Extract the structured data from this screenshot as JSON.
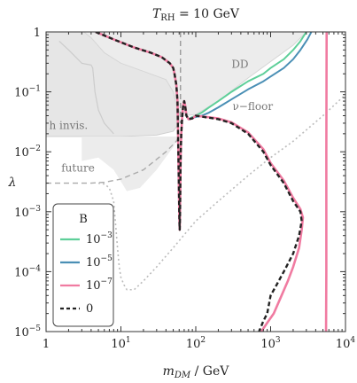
{
  "chart_data": {
    "type": "line",
    "title_main": "T",
    "title_sub": "RH",
    "title_value": " = 10 GeV",
    "xlabel_main": "m",
    "xlabel_sub": "DM",
    "xlabel_unit": " / GeV",
    "ylabel": "λ",
    "x_scale": "log",
    "y_scale": "log",
    "xlim": [
      1,
      10000
    ],
    "ylim": [
      1e-05,
      1
    ],
    "x_ticks": [
      {
        "value": 1,
        "base": "1",
        "exp": ""
      },
      {
        "value": 10,
        "base": "10",
        "exp": "1"
      },
      {
        "value": 100,
        "base": "10",
        "exp": "2"
      },
      {
        "value": 1000,
        "base": "10",
        "exp": "3"
      },
      {
        "value": 10000,
        "base": "10",
        "exp": "4"
      }
    ],
    "y_ticks": [
      {
        "value": 1,
        "base": "1",
        "exp": ""
      },
      {
        "value": 0.1,
        "base": "10",
        "exp": "−1"
      },
      {
        "value": 0.01,
        "base": "10",
        "exp": "−2"
      },
      {
        "value": 0.001,
        "base": "10",
        "exp": "−3"
      },
      {
        "value": 0.0001,
        "base": "10",
        "exp": "−4"
      },
      {
        "value": 1e-05,
        "base": "10",
        "exp": "−5"
      }
    ],
    "legend": {
      "title": "B",
      "placement": "lower-left",
      "entries": [
        {
          "base": "10",
          "exp": "−3",
          "color": "#5ecf99",
          "dashed": false
        },
        {
          "base": "10",
          "exp": "−5",
          "color": "#4a8fb5",
          "dashed": false
        },
        {
          "base": "10",
          "exp": "−7",
          "color": "#f07ba1",
          "dashed": false
        },
        {
          "base": "0",
          "exp": "",
          "color": "#222222",
          "dashed": true
        }
      ]
    },
    "annotations": [
      {
        "text": "DD",
        "x": 300,
        "y": 0.25
      },
      {
        "text": "ν−floor",
        "x": 310,
        "y": 0.05
      },
      {
        "text": "h invis.",
        "x": 1.1,
        "y": 0.024
      },
      {
        "text": "future",
        "x": 1.6,
        "y": 0.0047
      }
    ],
    "regions": {
      "dd_excluded": {
        "color": "#ececec",
        "boundary": [
          [
            3.2,
            1
          ],
          [
            4,
            0.8
          ],
          [
            6,
            0.45
          ],
          [
            10,
            0.3
          ],
          [
            20,
            0.22
          ],
          [
            40,
            0.16
          ],
          [
            50,
            0.1
          ],
          [
            55,
            0.06
          ],
          [
            62,
            0.045
          ],
          [
            70,
            0.04
          ],
          [
            100,
            0.042
          ],
          [
            200,
            0.07
          ],
          [
            500,
            0.17
          ],
          [
            1000,
            0.32
          ],
          [
            2000,
            0.6
          ],
          [
            3000,
            1
          ]
        ]
      },
      "h_invisible": {
        "color": "#e6e6e6",
        "boundary": [
          [
            1,
            0.018
          ],
          [
            10,
            0.018
          ],
          [
            30,
            0.019
          ],
          [
            50,
            0.022
          ],
          [
            60,
            0.03
          ],
          [
            63,
            1
          ]
        ]
      },
      "lower_grey_fill": {
        "color": "#ececec",
        "boundary": [
          [
            3,
            0.007
          ],
          [
            5,
            0.008
          ],
          [
            8,
            0.005
          ],
          [
            12,
            0.0022
          ],
          [
            18,
            0.0025
          ],
          [
            30,
            0.005
          ],
          [
            50,
            0.012
          ],
          [
            62,
            0.02
          ]
        ]
      }
    },
    "series": [
      {
        "key": "zero",
        "color": "#222222",
        "dashed": true,
        "x": [
          4.6,
          8,
          15,
          25,
          35,
          45,
          50,
          52,
          55,
          57,
          58,
          59,
          60,
          60.5,
          61,
          61.5,
          62,
          62.5,
          63,
          64,
          66,
          68,
          70,
          72,
          75,
          80,
          90,
          100,
          200,
          300,
          500,
          800,
          1000,
          1500,
          2000,
          2500,
          2600,
          2400,
          2000,
          1500,
          1200,
          1000,
          900,
          800,
          700
        ],
        "y": [
          1,
          0.75,
          0.55,
          0.45,
          0.38,
          0.3,
          0.25,
          0.2,
          0.13,
          0.07,
          0.02,
          0.005,
          0.0012,
          0.0007,
          0.0005,
          0.0008,
          0.002,
          0.005,
          0.01,
          0.02,
          0.04,
          0.06,
          0.07,
          0.06,
          0.04,
          0.035,
          0.036,
          0.04,
          0.035,
          0.03,
          0.02,
          0.01,
          0.006,
          0.003,
          0.0015,
          0.001,
          0.0007,
          0.0004,
          0.0002,
          0.0001,
          6e-05,
          4e-05,
          2e-05,
          1.5e-05,
          1e-05
        ]
      },
      {
        "key": "b3",
        "color": "#5ecf99",
        "dashed": false,
        "x": [
          75,
          80,
          90,
          100,
          120,
          150,
          200,
          300,
          500,
          800,
          1000,
          1500,
          2000,
          2500,
          3000
        ],
        "y": [
          0.04,
          0.035,
          0.038,
          0.04,
          0.045,
          0.055,
          0.07,
          0.1,
          0.15,
          0.2,
          0.25,
          0.35,
          0.5,
          0.7,
          1
        ]
      },
      {
        "key": "b5",
        "color": "#4a8fb5",
        "dashed": false,
        "x": [
          75,
          80,
          90,
          100,
          120,
          150,
          200,
          300,
          500,
          800,
          1000,
          1500,
          2000,
          2500,
          3100,
          3500
        ],
        "y": [
          0.04,
          0.035,
          0.037,
          0.038,
          0.04,
          0.045,
          0.055,
          0.075,
          0.11,
          0.15,
          0.18,
          0.25,
          0.35,
          0.5,
          0.75,
          1
        ]
      },
      {
        "key": "b7",
        "color": "#f07ba1",
        "dashed": false,
        "x": [
          4.6,
          8,
          15,
          25,
          35,
          45,
          50,
          52,
          55,
          57,
          58,
          59,
          60,
          60.5,
          61,
          61.5,
          62,
          62.5,
          63,
          64,
          66,
          68,
          70,
          72,
          75,
          80,
          90,
          100,
          200,
          300,
          500,
          800,
          1000,
          1500,
          2000,
          2500,
          2700,
          2600,
          2400,
          2000,
          1700,
          1400,
          1100,
          900,
          750
        ],
        "y": [
          1,
          0.75,
          0.55,
          0.45,
          0.38,
          0.3,
          0.25,
          0.2,
          0.13,
          0.07,
          0.02,
          0.005,
          0.0012,
          0.0007,
          0.0005,
          0.0008,
          0.002,
          0.005,
          0.01,
          0.02,
          0.04,
          0.06,
          0.07,
          0.06,
          0.04,
          0.035,
          0.036,
          0.04,
          0.036,
          0.031,
          0.021,
          0.011,
          0.0065,
          0.0033,
          0.0017,
          0.0011,
          0.0008,
          0.0005,
          0.00025,
          0.00012,
          7e-05,
          4e-05,
          2e-05,
          1.4e-05,
          1e-05
        ]
      },
      {
        "key": "b7_right",
        "color": "#f07ba1",
        "dashed": false,
        "x": [
          5600,
          5550,
          5550,
          5500
        ],
        "y": [
          1,
          0.01,
          0.0001,
          1e-05
        ]
      },
      {
        "key": "nu_floor",
        "color": "#bbbbbb",
        "dotted": true,
        "x": [
          5,
          6,
          7,
          8,
          8.5,
          9,
          9.5,
          10,
          11,
          12,
          15,
          20,
          30,
          50,
          100,
          200,
          500,
          1000,
          2000,
          5000,
          10000
        ],
        "y": [
          0.003,
          0.0029,
          0.0025,
          0.0015,
          0.0006,
          0.00025,
          0.00012,
          8e-05,
          6e-05,
          5e-05,
          5e-05,
          7e-05,
          0.00012,
          0.00025,
          0.0007,
          0.0015,
          0.004,
          0.008,
          0.015,
          0.04,
          0.09
        ]
      },
      {
        "key": "future",
        "color": "#aaaaaa",
        "dashed": true,
        "x": [
          1,
          2,
          4,
          6,
          10,
          20,
          40,
          55,
          62
        ],
        "y": [
          0.003,
          0.003,
          0.003,
          0.0031,
          0.0035,
          0.005,
          0.01,
          0.015,
          0.02
        ]
      },
      {
        "key": "h_invis_left",
        "color": "#cccccc",
        "dashed": false,
        "x": [
          1.5,
          2,
          3,
          4,
          4.2,
          4.5,
          5,
          6,
          8
        ],
        "y": [
          0.7,
          0.5,
          0.3,
          0.28,
          0.25,
          0.1,
          0.05,
          0.03,
          0.02
        ]
      },
      {
        "key": "vertical_dashed",
        "color": "#999999",
        "dashed": true,
        "x": [
          62.5,
          62.5
        ],
        "y": [
          1,
          0.03
        ]
      }
    ]
  }
}
